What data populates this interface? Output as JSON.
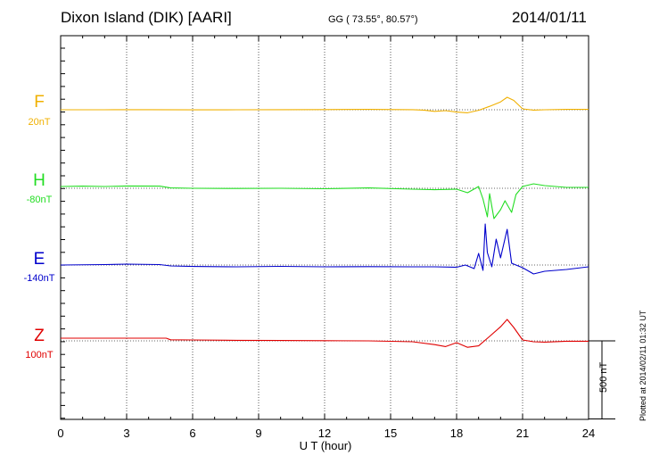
{
  "header": {
    "station": "Dixon Island (DIK)  [AARI]",
    "coords": "GG ( 73.55°,  80.57°)",
    "date": "2014/01/11"
  },
  "scale_label": "500 nT",
  "plotted": "Plotted at 2014/02/11 01:32 UT",
  "chart_data": {
    "type": "line",
    "title": "Dixon Island (DIK)  [AARI]",
    "xlabel": "U T (hour)",
    "ylabel": "",
    "xlim": [
      0,
      24
    ],
    "x_ticks": [
      "0",
      "3",
      "6",
      "9",
      "12",
      "15",
      "18",
      "21",
      "24"
    ],
    "grid": true,
    "scale_bar_nT": 500,
    "series": [
      {
        "name": "F",
        "baseline": "20nT",
        "color": "#f0b000",
        "baseline_nT": 20,
        "x": [
          0,
          2,
          4,
          6,
          8,
          10,
          12,
          14,
          16,
          16.5,
          17,
          17.5,
          18,
          18.5,
          19,
          19.5,
          20,
          20.3,
          20.6,
          21,
          21.5,
          22,
          23,
          24
        ],
        "values": [
          20,
          20,
          21,
          19,
          20,
          21,
          22,
          24,
          21,
          16,
          2,
          10,
          -6,
          -14,
          14,
          58,
          108,
          160,
          125,
          30,
          16,
          20,
          24,
          24
        ]
      },
      {
        "name": "H",
        "baseline": "-80nT",
        "color": "#22dd22",
        "baseline_nT": -80,
        "x": [
          0,
          1,
          2,
          3,
          4.5,
          5,
          6,
          8,
          10,
          12,
          14,
          16,
          17,
          18,
          18.5,
          19,
          19.2,
          19.4,
          19.5,
          19.7,
          20,
          20.2,
          20.5,
          20.7,
          21,
          21.5,
          22,
          23,
          24
        ],
        "values": [
          -60,
          -56,
          -60,
          -54,
          -56,
          -76,
          -80,
          -82,
          -80,
          -85,
          -76,
          -90,
          -96,
          -90,
          -130,
          -60,
          -200,
          -400,
          -140,
          -420,
          -320,
          -220,
          -350,
          -150,
          -60,
          -30,
          -50,
          -70,
          -70
        ]
      },
      {
        "name": "E",
        "baseline": "-140nT",
        "color": "#0000cc",
        "baseline_nT": -140,
        "x": [
          0,
          2,
          3,
          4.5,
          5,
          6,
          8,
          10,
          12,
          14,
          16,
          17,
          18,
          18.4,
          18.8,
          19,
          19.2,
          19.3,
          19.4,
          19.6,
          19.8,
          20,
          20.3,
          20.5,
          21,
          21.5,
          22,
          23,
          24
        ],
        "values": [
          -140,
          -135,
          -130,
          -135,
          -150,
          -156,
          -160,
          -155,
          -160,
          -158,
          -160,
          -160,
          -165,
          -140,
          -180,
          -10,
          -200,
          320,
          0,
          -160,
          150,
          -60,
          260,
          -120,
          -170,
          -240,
          -210,
          -190,
          -160
        ]
      },
      {
        "name": "Z",
        "baseline": "100nT",
        "color": "#e00000",
        "baseline_nT": 100,
        "x": [
          0,
          2,
          4,
          4.8,
          5,
          6,
          8,
          10,
          12,
          14,
          16,
          17,
          17.5,
          18,
          18.5,
          19,
          19.5,
          20,
          20.3,
          20.6,
          21,
          21.5,
          22,
          23,
          24
        ],
        "values": [
          130,
          130,
          130,
          130,
          112,
          110,
          106,
          104,
          102,
          100,
          90,
          58,
          36,
          80,
          28,
          44,
          150,
          258,
          340,
          250,
          110,
          90,
          86,
          96,
          96
        ]
      }
    ]
  }
}
